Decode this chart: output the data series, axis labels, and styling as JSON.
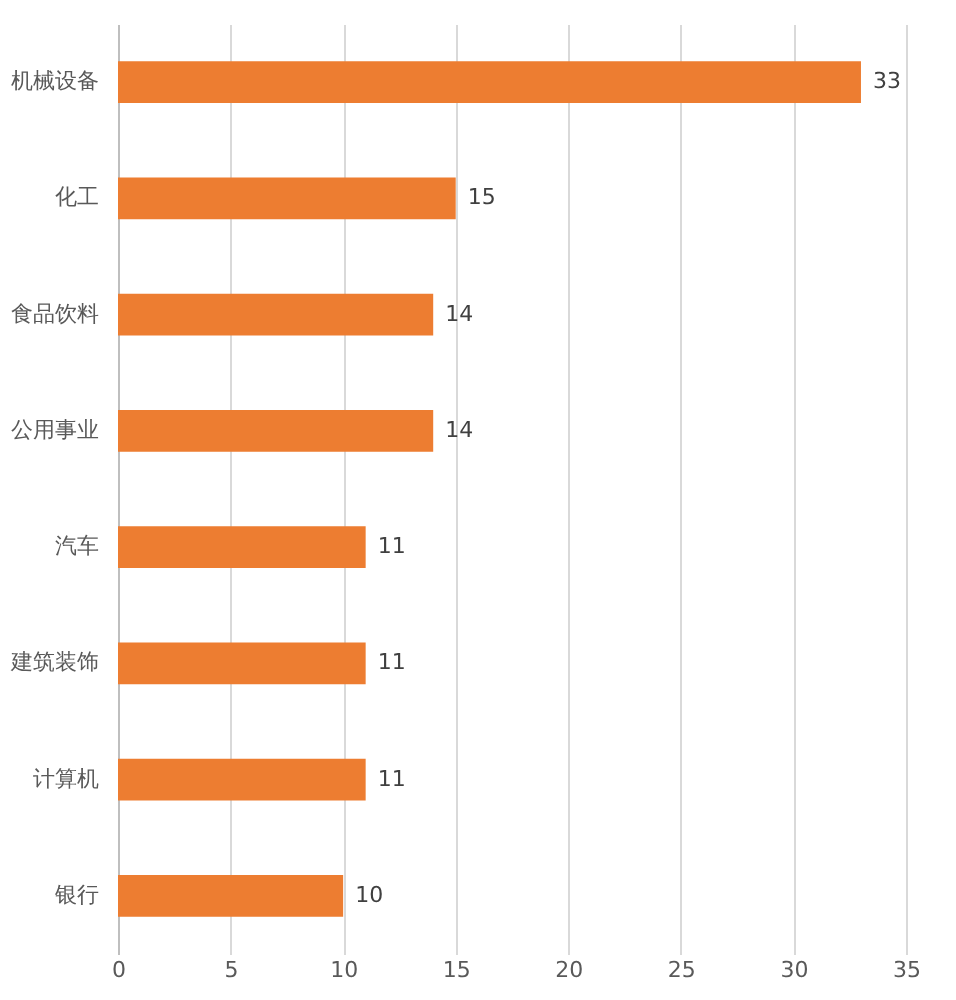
{
  "chart_data": {
    "type": "bar",
    "orientation": "horizontal",
    "categories": [
      "机械设备",
      "化工",
      "食品饮料",
      "公用事业",
      "汽车",
      "建筑装饰",
      "计算机",
      "银行"
    ],
    "values": [
      33,
      15,
      14,
      14,
      11,
      11,
      11,
      10
    ],
    "color": "#ed7d31",
    "xlim": [
      0,
      35
    ],
    "xticks": [
      0,
      5,
      10,
      15,
      20,
      25,
      30,
      35
    ],
    "grid": "x",
    "data_labels": true
  }
}
